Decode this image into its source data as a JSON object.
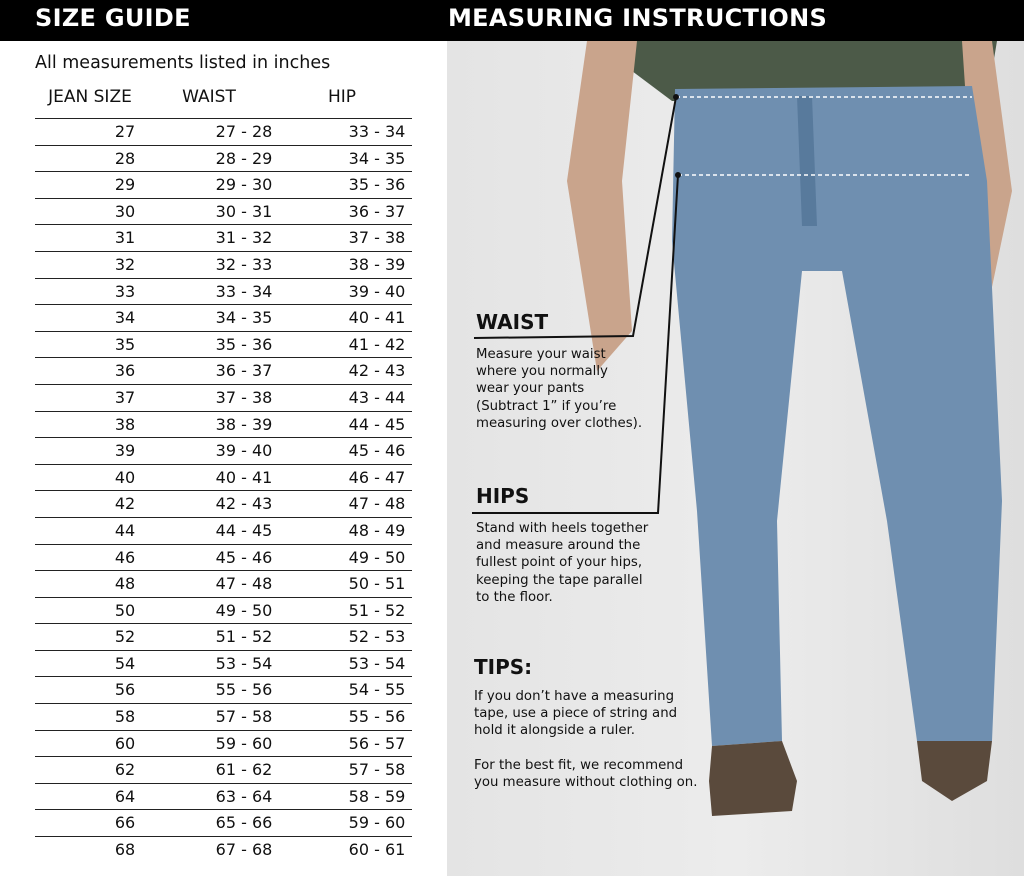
{
  "header": {
    "left_title": "SIZE GUIDE",
    "right_title": "MEASURING INSTRUCTIONS"
  },
  "size_guide": {
    "note": "All measurements listed in inches",
    "columns": [
      "JEAN SIZE",
      "WAIST",
      "HIP"
    ],
    "rows": [
      [
        "27",
        "27 - 28",
        "33 - 34"
      ],
      [
        "28",
        "28 - 29",
        "34 - 35"
      ],
      [
        "29",
        "29 - 30",
        "35 - 36"
      ],
      [
        "30",
        "30 - 31",
        "36 - 37"
      ],
      [
        "31",
        "31 - 32",
        "37 - 38"
      ],
      [
        "32",
        "32 - 33",
        "38 - 39"
      ],
      [
        "33",
        "33 - 34",
        "39 - 40"
      ],
      [
        "34",
        "34 - 35",
        "40 - 41"
      ],
      [
        "35",
        "35 - 36",
        "41 - 42"
      ],
      [
        "36",
        "36 - 37",
        "42 - 43"
      ],
      [
        "37",
        "37 - 38",
        "43 - 44"
      ],
      [
        "38",
        "38 - 39",
        "44 - 45"
      ],
      [
        "39",
        "39 - 40",
        "45 - 46"
      ],
      [
        "40",
        "40 - 41",
        "46 - 47"
      ],
      [
        "42",
        "42 - 43",
        "47 - 48"
      ],
      [
        "44",
        "44 - 45",
        "48 - 49"
      ],
      [
        "46",
        "45 - 46",
        "49 - 50"
      ],
      [
        "48",
        "47 - 48",
        "50 - 51"
      ],
      [
        "50",
        "49 - 50",
        "51 - 52"
      ],
      [
        "52",
        "51 - 52",
        "52 - 53"
      ],
      [
        "54",
        "53 - 54",
        "53 - 54"
      ],
      [
        "56",
        "55 - 56",
        "54 - 55"
      ],
      [
        "58",
        "57 - 58",
        "55 - 56"
      ],
      [
        "60",
        "59 - 60",
        "56 - 57"
      ],
      [
        "62",
        "61 - 62",
        "57 - 58"
      ],
      [
        "64",
        "63 - 64",
        "58 - 59"
      ],
      [
        "66",
        "65 - 66",
        "59 - 60"
      ],
      [
        "68",
        "67 - 68",
        "60 - 61"
      ]
    ]
  },
  "instructions": {
    "waist": {
      "title": "WAIST",
      "text": "Measure your waist\nwhere you normally\nwear your pants\n(Subtract 1” if you’re\nmeasuring over clothes)."
    },
    "hips": {
      "title": "HIPS",
      "text": "Stand with heels together\nand measure around the\nfullest point of your hips,\nkeeping the tape parallel\nto the floor."
    },
    "tips": {
      "title": "TIPS:",
      "text1": "If you don’t have a measuring\ntape, use a piece of string and\nhold it alongside a ruler.",
      "text2": "For the best fit, we recommend\nyou measure without clothing on."
    }
  },
  "colors": {
    "header_bg": "#000000",
    "panel_bg": "#e6e6e6",
    "denim": "#6f8fb0",
    "shirt": "#4c5a48",
    "shoes": "#5a4a3c"
  }
}
